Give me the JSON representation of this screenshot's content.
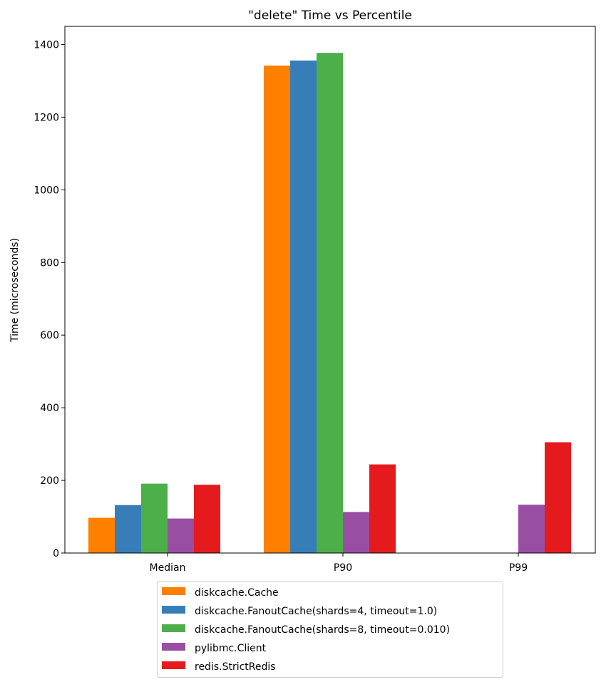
{
  "chart_data": {
    "type": "bar",
    "title": "\"delete\" Time vs Percentile",
    "xlabel": "",
    "ylabel": "Time (microseconds)",
    "ylim": [
      0,
      1450
    ],
    "yticks": [
      0,
      200,
      400,
      600,
      800,
      1000,
      1200,
      1400
    ],
    "categories": [
      "Median",
      "P90",
      "P99"
    ],
    "grid": false,
    "legend_position": "bottom-center (below axes)",
    "series": [
      {
        "name": "diskcache.Cache",
        "color": "#ff7f00",
        "values": [
          97,
          1342,
          0
        ]
      },
      {
        "name": "diskcache.FanoutCache(shards=4, timeout=1.0)",
        "color": "#377eb8",
        "values": [
          132,
          1356,
          0
        ]
      },
      {
        "name": "diskcache.FanoutCache(shards=8, timeout=0.010)",
        "color": "#4daf4a",
        "values": [
          191,
          1377,
          0
        ]
      },
      {
        "name": "pylibmc.Client",
        "color": "#984ea3",
        "values": [
          95,
          113,
          133
        ]
      },
      {
        "name": "redis.StrictRedis",
        "color": "#e41a1c",
        "values": [
          188,
          244,
          305
        ]
      }
    ]
  }
}
